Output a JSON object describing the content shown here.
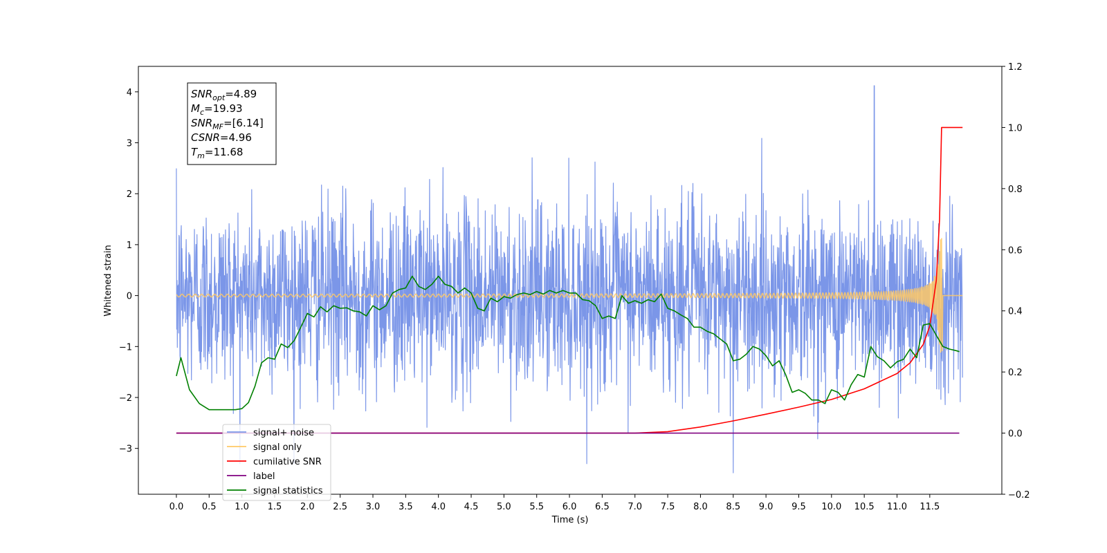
{
  "chart_data": {
    "type": "line",
    "xlabel": "Time (s)",
    "ylabel_left": "Whitened strain",
    "ylabel_right": "",
    "xlim": [
      -0.58,
      12.6
    ],
    "ylim_left": [
      -3.9,
      4.5
    ],
    "ylim_right": [
      -0.2,
      1.2
    ],
    "x_ticks": [
      "0.0",
      "0.5",
      "1.0",
      "1.5",
      "2.0",
      "2.5",
      "3.0",
      "3.5",
      "4.0",
      "4.5",
      "5.0",
      "5.5",
      "6.0",
      "6.5",
      "7.0",
      "7.5",
      "8.0",
      "8.5",
      "9.0",
      "9.5",
      "10.0",
      "10.5",
      "11.0",
      "11.5"
    ],
    "y_ticks_left": [
      "−3",
      "−2",
      "−1",
      "0",
      "1",
      "2",
      "3",
      "4"
    ],
    "y_ticks_right": [
      "−0.2",
      "0.0",
      "0.2",
      "0.4",
      "0.6",
      "0.8",
      "1.0",
      "1.2"
    ],
    "grid": false,
    "legend_position": "lower-left",
    "info_box": [
      {
        "main": "SNR",
        "sub": "opt",
        "rest": "=4.89"
      },
      {
        "main": "M",
        "sub": "c",
        "rest": "=19.93"
      },
      {
        "main": "SNR",
        "sub": "MF",
        "rest": "=[6.14]"
      },
      {
        "main": "CSNR",
        "sub": "",
        "rest": "=4.96"
      },
      {
        "main": "T",
        "sub": "m",
        "rest": "=11.68"
      }
    ],
    "series": [
      {
        "name": "signal+ noise",
        "label_text": "signal+ noise",
        "axis": "left",
        "color": "#7b96e8",
        "style": "noise",
        "x_range": [
          0.0,
          12.0
        ],
        "sigma": 0.9,
        "max_value": 4.12,
        "min_value": -3.48,
        "max_at": 10.65,
        "min_at": 8.5
      },
      {
        "name": "signal only",
        "label_text": "signal only",
        "axis": "left",
        "color": "#ffc966",
        "style": "chirp",
        "x_range": [
          0.0,
          11.68
        ],
        "merger_time": 11.68,
        "peak_amplitude": 1.12,
        "peak_negative": -1.08
      },
      {
        "name": "cumilative SNR",
        "label_text": "cumilative SNR",
        "axis": "right",
        "color": "#ff0000",
        "style": "line",
        "x": [
          0.0,
          7.0,
          7.5,
          8.0,
          8.5,
          9.0,
          9.5,
          10.0,
          10.5,
          11.0,
          11.2,
          11.4,
          11.5,
          11.6,
          11.65,
          11.68,
          11.7,
          12.0
        ],
        "y": [
          0.0,
          0.0,
          0.005,
          0.02,
          0.04,
          0.062,
          0.085,
          0.11,
          0.145,
          0.195,
          0.23,
          0.29,
          0.35,
          0.5,
          0.7,
          1.0,
          1.0,
          1.0
        ]
      },
      {
        "name": "label",
        "label_text": "label",
        "axis": "right",
        "color": "#800080",
        "style": "line",
        "x": [
          0.0,
          11.95
        ],
        "y": [
          0.0,
          0.0
        ]
      },
      {
        "name": "signal statistics",
        "label_text": "signal statistics",
        "axis": "left",
        "color": "#008000",
        "style": "line",
        "x": [
          0.0,
          0.07,
          0.2,
          0.35,
          0.5,
          0.7,
          0.9,
          1.0,
          1.1,
          1.2,
          1.3,
          1.4,
          1.5,
          1.6,
          1.7,
          1.8,
          1.9,
          2.0,
          2.1,
          2.2,
          2.3,
          2.4,
          2.5,
          2.6,
          2.7,
          2.8,
          2.9,
          3.0,
          3.1,
          3.2,
          3.3,
          3.4,
          3.5,
          3.6,
          3.7,
          3.8,
          3.9,
          4.0,
          4.1,
          4.2,
          4.3,
          4.4,
          4.5,
          4.6,
          4.7,
          4.8,
          4.9,
          5.0,
          5.1,
          5.2,
          5.3,
          5.4,
          5.5,
          5.6,
          5.7,
          5.8,
          5.9,
          6.0,
          6.1,
          6.2,
          6.3,
          6.4,
          6.5,
          6.6,
          6.7,
          6.8,
          6.9,
          7.0,
          7.1,
          7.2,
          7.3,
          7.4,
          7.5,
          7.6,
          7.7,
          7.8,
          7.9,
          8.0,
          8.1,
          8.2,
          8.3,
          8.4,
          8.5,
          8.6,
          8.7,
          8.8,
          8.9,
          9.0,
          9.1,
          9.2,
          9.3,
          9.4,
          9.5,
          9.6,
          9.7,
          9.8,
          9.9,
          10.0,
          10.1,
          10.2,
          10.3,
          10.4,
          10.5,
          10.6,
          10.7,
          10.8,
          10.9,
          11.0,
          11.1,
          11.2,
          11.3,
          11.4,
          11.5,
          11.6,
          11.7,
          11.8,
          11.9,
          11.95
        ],
        "y": [
          -1.58,
          -1.22,
          -1.85,
          -2.12,
          -2.24,
          -2.24,
          -2.24,
          -2.22,
          -2.1,
          -1.78,
          -1.32,
          -1.22,
          -1.25,
          -0.95,
          -1.02,
          -0.88,
          -0.62,
          -0.35,
          -0.42,
          -0.22,
          -0.32,
          -0.2,
          -0.25,
          -0.24,
          -0.3,
          -0.32,
          -0.4,
          -0.2,
          -0.28,
          -0.2,
          0.05,
          0.12,
          0.15,
          0.38,
          0.18,
          0.12,
          0.22,
          0.38,
          0.22,
          0.18,
          0.05,
          0.15,
          0.05,
          -0.25,
          -0.3,
          -0.05,
          -0.12,
          -0.02,
          -0.05,
          0.02,
          0.05,
          0.02,
          0.08,
          0.03,
          0.1,
          0.05,
          0.1,
          0.05,
          0.05,
          -0.08,
          -0.1,
          -0.2,
          -0.45,
          -0.4,
          -0.45,
          0.0,
          -0.15,
          -0.1,
          -0.15,
          -0.08,
          -0.12,
          0.03,
          -0.25,
          -0.3,
          -0.38,
          -0.45,
          -0.62,
          -0.62,
          -0.7,
          -0.75,
          -0.85,
          -0.95,
          -1.28,
          -1.25,
          -1.15,
          -1.0,
          -1.05,
          -1.18,
          -1.38,
          -1.28,
          -1.55,
          -1.9,
          -1.85,
          -1.92,
          -2.05,
          -2.05,
          -2.12,
          -1.85,
          -1.9,
          -2.05,
          -1.75,
          -1.55,
          -1.6,
          -1.0,
          -1.2,
          -1.28,
          -1.42,
          -1.3,
          -1.25,
          -1.05,
          -1.22,
          -0.58,
          -0.55,
          -0.78,
          -1.0,
          -1.05,
          -1.08,
          -1.1
        ]
      }
    ]
  }
}
